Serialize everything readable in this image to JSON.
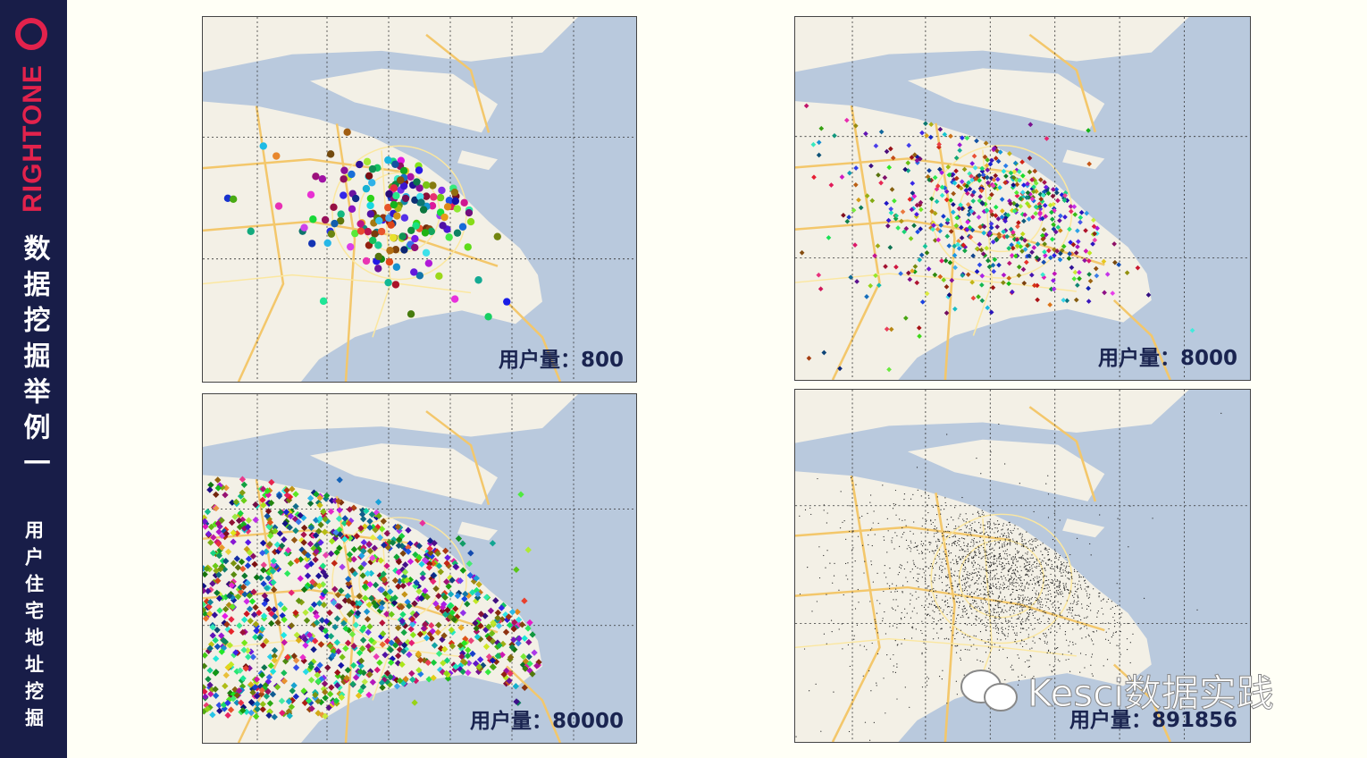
{
  "sidebar": {
    "brand": "RIGHTONE",
    "title": "数据挖掘举例一",
    "subtitle": "用户住宅地址挖掘"
  },
  "panels": [
    {
      "label": "用户量：800"
    },
    {
      "label": "用户量：8000"
    },
    {
      "label": "用户量：80000"
    },
    {
      "label": "用户量：891856"
    }
  ],
  "watermark": "Kesci数据实践"
}
